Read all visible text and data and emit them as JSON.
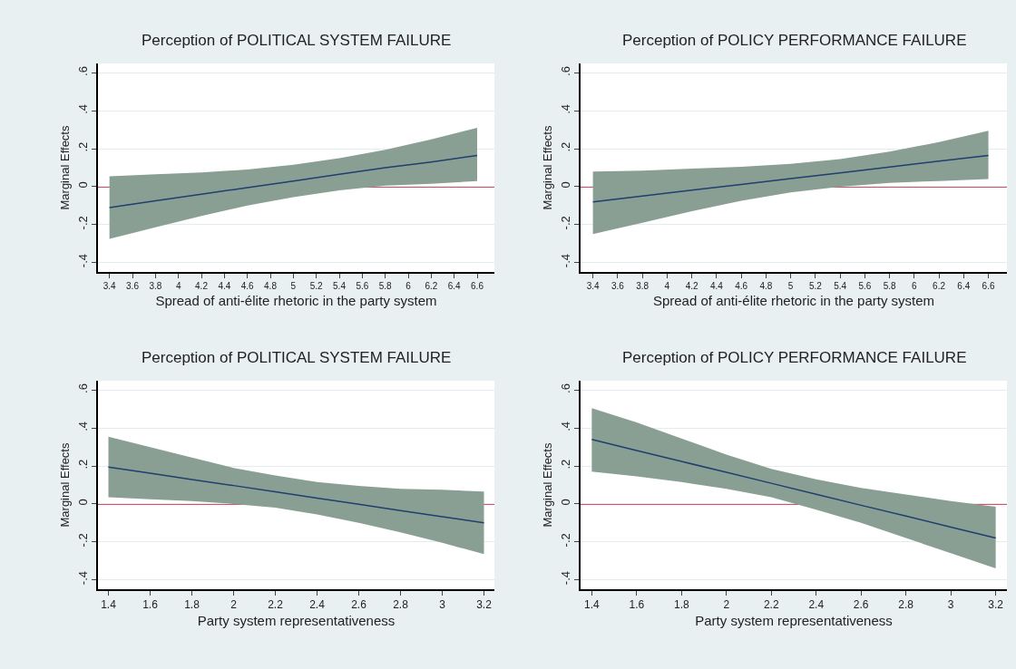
{
  "chart_data": [
    {
      "type": "line",
      "title": "Perception of POLITICAL SYSTEM FAILURE",
      "xlabel": "Spread of anti-élite rhetoric in the party system",
      "ylabel": "Marginal Effects",
      "x": [
        3.4,
        3.8,
        4.2,
        4.6,
        5.0,
        5.4,
        5.8,
        6.2,
        6.6
      ],
      "xlim": [
        3.3,
        6.75
      ],
      "xticks": [
        3.4,
        3.6,
        3.8,
        4,
        4.2,
        4.4,
        4.6,
        4.8,
        5,
        5.2,
        5.4,
        5.6,
        5.8,
        6,
        6.2,
        6.4,
        6.6
      ],
      "ylim": [
        -0.45,
        0.65
      ],
      "yticks": [
        {
          "value": -0.4,
          "label": "-.4"
        },
        {
          "value": -0.2,
          "label": "-.2"
        },
        0,
        {
          "value": 0.2,
          "label": ".2"
        },
        {
          "value": 0.4,
          "label": ".4"
        },
        {
          "value": 0.6,
          "label": ".6"
        }
      ],
      "grid": "y",
      "series": [
        {
          "color": "#1f3f6e",
          "values": [
            -0.11,
            -0.075,
            -0.04,
            -0.005,
            0.03,
            0.065,
            0.1,
            0.13,
            0.165
          ],
          "lower": [
            -0.275,
            -0.215,
            -0.155,
            -0.1,
            -0.055,
            -0.02,
            0.005,
            0.015,
            0.03
          ],
          "upper": [
            0.055,
            0.065,
            0.075,
            0.09,
            0.115,
            0.15,
            0.195,
            0.25,
            0.31
          ]
        }
      ],
      "ref_lines": [
        {
          "axis": "y",
          "value": 0,
          "color": "#d0103a"
        }
      ]
    },
    {
      "type": "line",
      "title": "Perception of POLICY PERFORMANCE FAILURE",
      "xlabel": "Spread of anti-élite rhetoric in the party system",
      "ylabel": "Marginal Effects",
      "x": [
        3.4,
        3.8,
        4.2,
        4.6,
        5.0,
        5.4,
        5.8,
        6.2,
        6.6
      ],
      "xlim": [
        3.3,
        6.75
      ],
      "xticks": [
        3.4,
        3.6,
        3.8,
        4,
        4.2,
        4.4,
        4.6,
        4.8,
        5,
        5.2,
        5.4,
        5.6,
        5.8,
        6,
        6.2,
        6.4,
        6.6
      ],
      "ylim": [
        -0.45,
        0.65
      ],
      "yticks": [
        {
          "value": -0.4,
          "label": "-.4"
        },
        {
          "value": -0.2,
          "label": "-.2"
        },
        0,
        {
          "value": 0.2,
          "label": ".2"
        },
        {
          "value": 0.4,
          "label": ".4"
        },
        {
          "value": 0.6,
          "label": ".6"
        }
      ],
      "grid": "y",
      "series": [
        {
          "color": "#1f3f6e",
          "values": [
            -0.08,
            -0.049,
            -0.018,
            0.012,
            0.043,
            0.073,
            0.104,
            0.135,
            0.165
          ],
          "lower": [
            -0.25,
            -0.19,
            -0.13,
            -0.075,
            -0.03,
            0.0,
            0.02,
            0.03,
            0.04
          ],
          "upper": [
            0.08,
            0.085,
            0.095,
            0.105,
            0.12,
            0.145,
            0.185,
            0.235,
            0.295
          ]
        }
      ],
      "ref_lines": [
        {
          "axis": "y",
          "value": 0,
          "color": "#d0103a"
        }
      ]
    },
    {
      "type": "line",
      "title": "Perception of POLITICAL SYSTEM FAILURE",
      "xlabel": "Party system representativeness",
      "ylabel": "Marginal Effects",
      "x": [
        1.4,
        1.6,
        1.8,
        2.0,
        2.2,
        2.4,
        2.6,
        2.8,
        3.0,
        3.2
      ],
      "xlim": [
        1.35,
        3.25
      ],
      "xticks": [
        1.4,
        1.6,
        1.8,
        2,
        2.2,
        2.4,
        2.6,
        2.8,
        3,
        3.2
      ],
      "ylim": [
        -0.45,
        0.65
      ],
      "yticks": [
        {
          "value": -0.4,
          "label": "-.4"
        },
        {
          "value": -0.2,
          "label": "-.2"
        },
        0,
        {
          "value": 0.2,
          "label": ".2"
        },
        {
          "value": 0.4,
          "label": ".4"
        },
        {
          "value": 0.6,
          "label": ".6"
        }
      ],
      "grid": "y",
      "series": [
        {
          "color": "#1f3f6e",
          "values": [
            0.195,
            0.162,
            0.129,
            0.097,
            0.064,
            0.031,
            -0.002,
            -0.035,
            -0.067,
            -0.1
          ],
          "lower": [
            0.035,
            0.025,
            0.015,
            0.0,
            -0.02,
            -0.055,
            -0.1,
            -0.15,
            -0.205,
            -0.265
          ],
          "upper": [
            0.355,
            0.3,
            0.245,
            0.19,
            0.15,
            0.115,
            0.095,
            0.08,
            0.075,
            0.065
          ]
        }
      ],
      "ref_lines": [
        {
          "axis": "y",
          "value": 0,
          "color": "#d0103a"
        }
      ]
    },
    {
      "type": "line",
      "title": "Perception of POLICY PERFORMANCE FAILURE",
      "xlabel": "Party system representativeness",
      "ylabel": "Marginal Effects",
      "x": [
        1.4,
        1.6,
        1.8,
        2.0,
        2.2,
        2.4,
        2.6,
        2.8,
        3.0,
        3.2
      ],
      "xlim": [
        1.35,
        3.25
      ],
      "xticks": [
        1.4,
        1.6,
        1.8,
        2,
        2.2,
        2.4,
        2.6,
        2.8,
        3,
        3.2
      ],
      "ylim": [
        -0.45,
        0.65
      ],
      "yticks": [
        {
          "value": -0.4,
          "label": "-.4"
        },
        {
          "value": -0.2,
          "label": "-.2"
        },
        0,
        {
          "value": 0.2,
          "label": ".2"
        },
        {
          "value": 0.4,
          "label": ".4"
        },
        {
          "value": 0.6,
          "label": ".6"
        }
      ],
      "grid": "y",
      "series": [
        {
          "color": "#1f3f6e",
          "values": [
            0.34,
            0.282,
            0.224,
            0.167,
            0.109,
            0.051,
            -0.007,
            -0.064,
            -0.122,
            -0.18
          ],
          "lower": [
            0.17,
            0.145,
            0.115,
            0.08,
            0.035,
            -0.03,
            -0.1,
            -0.18,
            -0.26,
            -0.34
          ],
          "upper": [
            0.505,
            0.43,
            0.345,
            0.26,
            0.185,
            0.13,
            0.085,
            0.05,
            0.015,
            -0.015
          ]
        }
      ],
      "ref_lines": [
        {
          "axis": "y",
          "value": 0,
          "color": "#d0103a"
        }
      ]
    }
  ]
}
